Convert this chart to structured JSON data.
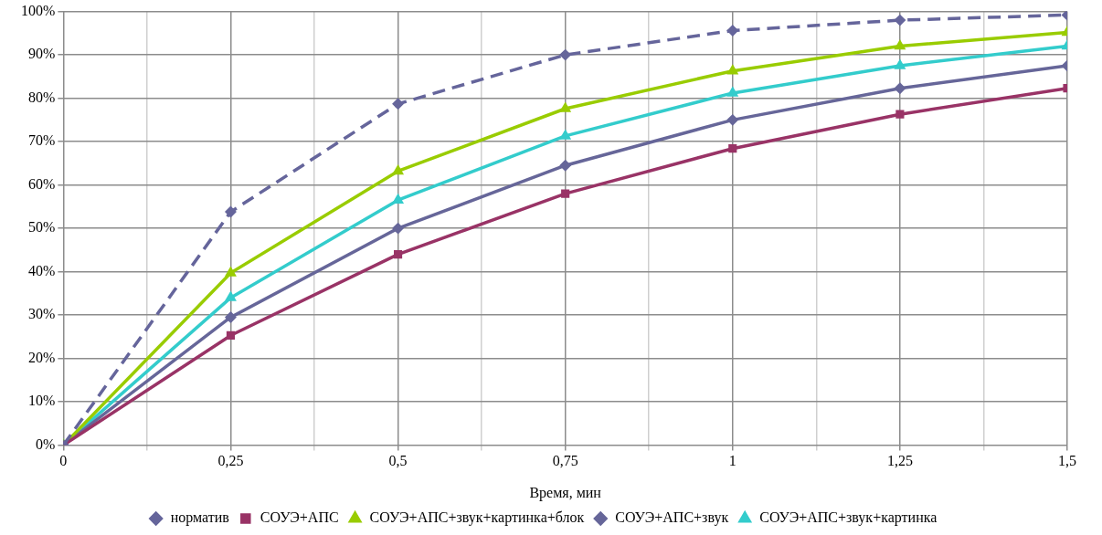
{
  "chart_data": {
    "type": "line",
    "xlabel": "Время, мин",
    "x": [
      0,
      0.25,
      0.5,
      0.75,
      1,
      1.25,
      1.5
    ],
    "xlim": [
      0,
      1.5
    ],
    "xticks": [
      0,
      {
        "value": 0.125,
        "label": null
      },
      {
        "value": 0.25,
        "label": "0,25"
      },
      {
        "value": 0.375,
        "label": null
      },
      {
        "value": 0.5,
        "label": "0,5"
      },
      {
        "value": 0.625,
        "label": null
      },
      {
        "value": 0.75,
        "label": "0,75"
      },
      {
        "value": 0.875,
        "label": null
      },
      1,
      {
        "value": 1.125,
        "label": null
      },
      {
        "value": 1.25,
        "label": "1,25"
      },
      {
        "value": 1.375,
        "label": null
      },
      {
        "value": 1.5,
        "label": "1,5"
      }
    ],
    "ylim": [
      0,
      100
    ],
    "yticks": [
      {
        "value": 0,
        "label": "0%"
      },
      {
        "value": 10,
        "label": "10%"
      },
      {
        "value": 20,
        "label": "20%"
      },
      {
        "value": 30,
        "label": "30%"
      },
      {
        "value": 40,
        "label": "40%"
      },
      {
        "value": 50,
        "label": "50%"
      },
      {
        "value": 60,
        "label": "60%"
      },
      {
        "value": 70,
        "label": "70%"
      },
      {
        "value": 80,
        "label": "80%"
      },
      {
        "value": 90,
        "label": "90%"
      },
      {
        "value": 100,
        "label": "100%"
      }
    ],
    "grid": true,
    "legend": "bottom",
    "series": [
      {
        "name": "норматив",
        "color": "#65659b",
        "line_style": "dashed",
        "marker": "diamond",
        "values": [
          0,
          53.8,
          78.7,
          90,
          95.6,
          98,
          99.2
        ]
      },
      {
        "name": "СОУЭ+АПС",
        "color": "#993366",
        "line_style": "solid",
        "marker": "square",
        "values": [
          0,
          25.3,
          44,
          58,
          68.4,
          76.3,
          82.3
        ]
      },
      {
        "name": "СОУЭ+АПС+звук+картинка+блок",
        "color": "#99cc00",
        "line_style": "solid",
        "marker": "triangle",
        "values": [
          0,
          39.7,
          63.2,
          77.6,
          86.3,
          92,
          95.2
        ]
      },
      {
        "name": "СОУЭ+АПС+звук",
        "color": "#666699",
        "line_style": "solid",
        "marker": "diamond",
        "values": [
          0,
          29.5,
          50,
          64.5,
          75,
          82.3,
          87.5
        ]
      },
      {
        "name": "СОУЭ+АПС+звук+картинка",
        "color": "#33cccc",
        "line_style": "solid",
        "marker": "triangle",
        "values": [
          0,
          34,
          56.5,
          71.3,
          81.2,
          87.5,
          92
        ]
      }
    ]
  }
}
